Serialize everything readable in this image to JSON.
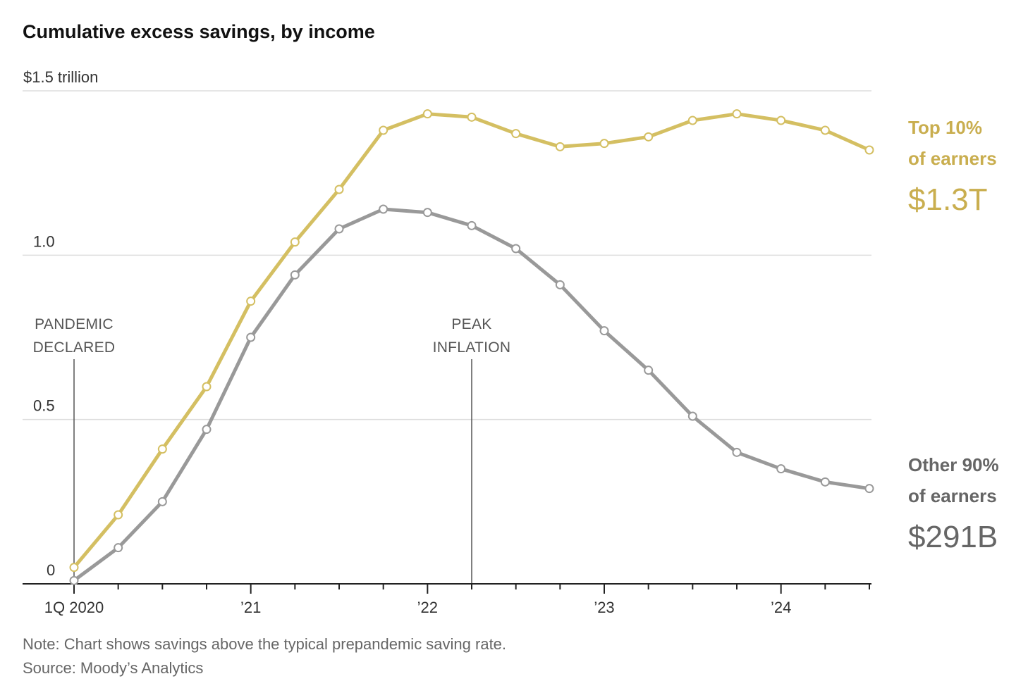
{
  "chart_data": {
    "type": "line",
    "title": "Cumulative excess savings, by income",
    "y_unit_label": "$1.5 trillion",
    "ylim": [
      0,
      1.5
    ],
    "y_ticks": [
      {
        "value": 0,
        "label": "0"
      },
      {
        "value": 0.5,
        "label": "0.5"
      },
      {
        "value": 1.0,
        "label": "1.0"
      },
      {
        "value": 1.5,
        "label": "$1.5 trillion"
      }
    ],
    "x_range": [
      0,
      18
    ],
    "x_tick_labels": [
      {
        "index": 0,
        "label": "1Q 2020"
      },
      {
        "index": 4,
        "label": "’21"
      },
      {
        "index": 8,
        "label": "’22"
      },
      {
        "index": 12,
        "label": "’23"
      },
      {
        "index": 16,
        "label": "’24"
      }
    ],
    "x": [
      "1Q20",
      "2Q20",
      "3Q20",
      "4Q20",
      "1Q21",
      "2Q21",
      "3Q21",
      "4Q21",
      "1Q22",
      "2Q22",
      "3Q22",
      "4Q22",
      "1Q23",
      "2Q23",
      "3Q23",
      "4Q23",
      "1Q24",
      "2Q24",
      "3Q24"
    ],
    "series": [
      {
        "name": "Top 10% of earners",
        "color": "#d4bf62",
        "values": [
          0.05,
          0.21,
          0.41,
          0.6,
          0.86,
          1.04,
          1.2,
          1.38,
          1.43,
          1.42,
          1.37,
          1.33,
          1.34,
          1.36,
          1.41,
          1.43,
          1.41,
          1.38,
          1.32
        ]
      },
      {
        "name": "Other 90% of earners",
        "color": "#999999",
        "values": [
          0.01,
          0.11,
          0.25,
          0.47,
          0.75,
          0.94,
          1.08,
          1.14,
          1.13,
          1.09,
          1.02,
          0.91,
          0.77,
          0.65,
          0.51,
          0.4,
          0.35,
          0.31,
          0.29
        ]
      }
    ],
    "annotations": [
      {
        "index": 0,
        "lines": [
          "PANDEMIC",
          "DECLARED"
        ]
      },
      {
        "index": 9,
        "lines": [
          "PEAK",
          "INFLATION"
        ]
      }
    ],
    "legend": [
      {
        "lines": [
          "Top 10%",
          "of earners"
        ],
        "value": "$1.3T",
        "color": "#c9ae4f"
      },
      {
        "lines": [
          "Other 90%",
          "of earners"
        ],
        "value": "$291B",
        "color": "#666666"
      }
    ],
    "note": "Note: Chart shows savings above the typical prepandemic saving rate.",
    "source": "Source: Moody’s Analytics"
  }
}
